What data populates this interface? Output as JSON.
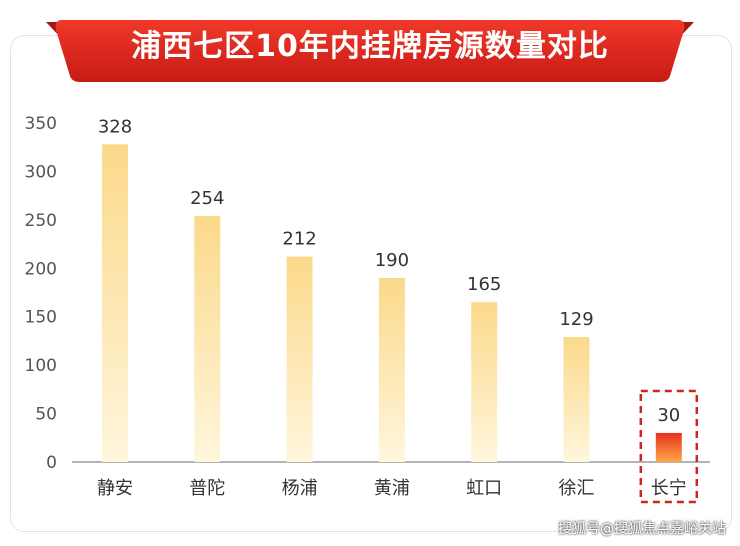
{
  "banner": {
    "title": "浦西七区10年内挂牌房源数量对比"
  },
  "watermark": "搜狐号@搜狐焦点嘉峪关站",
  "chart_data": {
    "type": "bar",
    "title": "浦西七区10年内挂牌房源数量对比",
    "categories": [
      "静安",
      "普陀",
      "杨浦",
      "黄浦",
      "虹口",
      "徐汇",
      "长宁"
    ],
    "values": [
      328,
      254,
      212,
      190,
      165,
      129,
      30
    ],
    "ylim": [
      0,
      350
    ],
    "yticks": [
      0,
      50,
      100,
      150,
      200,
      250,
      300,
      350
    ],
    "grid": false,
    "legend": "none",
    "highlight_category": "长宁",
    "colors": {
      "bar_top": "#fbd98a",
      "bar_bottom": "#fff6dc",
      "highlight_top": "#e8321e",
      "highlight_bottom": "#ffa84a",
      "highlight_box": "#c8281e",
      "banner_red": "#e0251f",
      "banner_dark": "#b01812",
      "text": "#333333",
      "axis": "#555555"
    }
  }
}
